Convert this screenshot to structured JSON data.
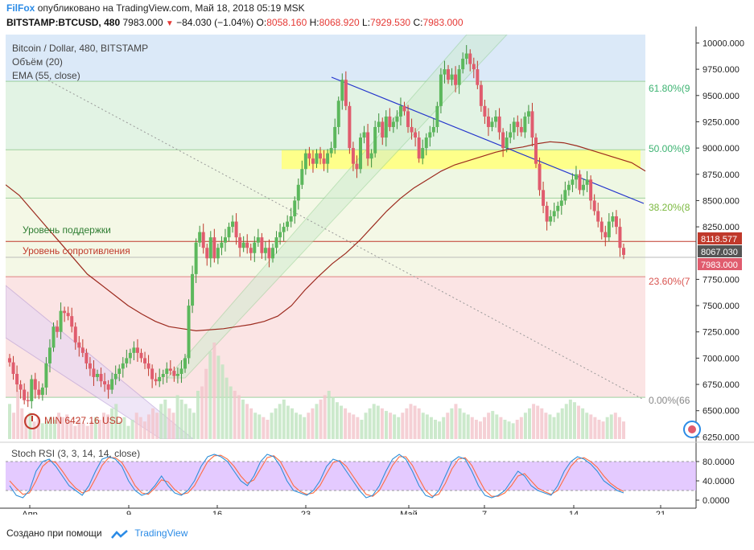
{
  "header": {
    "brand": "FilFox",
    "published_text": "опубликовано на TradingView.com, Май 18, 2018 05:19 MSK"
  },
  "ohlc": {
    "symbol": "BITSTAMP:BTCUSD, 480",
    "last": "7983.000",
    "change": "−84.030 (−1.04%)",
    "o_label": "O:",
    "o_val": "8058.160",
    "h_label": "H:",
    "h_val": "8068.920",
    "l_label": "L:",
    "l_val": "7929.530",
    "c_label": "C:",
    "c_val": "7983.000"
  },
  "legend": {
    "title": "Bitcoin / Dollar, 480, BITSTAMP",
    "volume": "Объём (20)",
    "ema": "EMA (55, close)"
  },
  "annotations": {
    "support": "Уровень поддержки",
    "resistance": "Уровень сопротивления",
    "min_label": "MIN 6427.16 USD"
  },
  "fib_labels": [
    "61.80%(9",
    "50.00%(9",
    "38.20%(8",
    "23.60%(7",
    "0.00%(66"
  ],
  "price_badges": {
    "resistance": "8118.577",
    "support": "8067.030",
    "last": "7983.000"
  },
  "stoch_label": "Stoch RSI (3, 3, 14, 14, close)",
  "footer": {
    "created": "Создано при помощи",
    "brand": "TradingView"
  },
  "colors": {
    "up": "#5cb85c",
    "down": "#e05c6e",
    "ema": "#9c2a1e",
    "trend_blue": "#2233cc",
    "fib_green": "#3cb371",
    "stoch_k": "#2f8fd8",
    "stoch_d": "#ff6b40",
    "band": "#d9b3ff"
  },
  "chart_data": {
    "type": "candlestick",
    "title": "Bitcoin / Dollar, 480, BITSTAMP",
    "y_ticks": [
      "10000.000",
      "9750.000",
      "9500.000",
      "9250.000",
      "9000.000",
      "8750.000",
      "8500.000",
      "8250.000",
      "7750.000",
      "7500.000",
      "7250.000",
      "7000.000",
      "6750.000",
      "6500.000",
      "6250.000"
    ],
    "x_ticks": [
      "Апр",
      "9",
      "16",
      "23",
      "Май",
      "7",
      "14",
      "21"
    ],
    "ylim": [
      6230,
      10080
    ],
    "fib_levels": [
      9635,
      8984,
      8523,
      7775,
      6627
    ],
    "horizontal_levels": {
      "resistance": 8118.577,
      "support": 8067.03
    },
    "closes": [
      6960,
      6850,
      6750,
      6700,
      6600,
      6590,
      6800,
      6700,
      6650,
      6720,
      6950,
      7100,
      7300,
      7250,
      7450,
      7430,
      7400,
      7300,
      7150,
      7100,
      7050,
      6950,
      6900,
      6820,
      6850,
      6780,
      6750,
      6700,
      6800,
      6850,
      6900,
      6950,
      7000,
      7050,
      7100,
      7050,
      7000,
      6950,
      6900,
      6800,
      6780,
      6820,
      6850,
      6900,
      6880,
      6830,
      6850,
      6900,
      7000,
      7500,
      7800,
      8100,
      8200,
      8050,
      7950,
      8150,
      7950,
      8050,
      8100,
      8150,
      8250,
      8300,
      8150,
      8050,
      8100,
      8050,
      8000,
      8100,
      8150,
      8000,
      8050,
      7950,
      8050,
      8150,
      8200,
      8250,
      8300,
      8350,
      8500,
      8650,
      8800,
      8950,
      8900,
      8850,
      8950,
      8900,
      8850,
      8950,
      9000,
      9200,
      9450,
      9650,
      9400,
      9000,
      8850,
      8800,
      9100,
      9150,
      8900,
      8950,
      9200,
      9250,
      9100,
      9300,
      9200,
      9250,
      9300,
      9400,
      9350,
      9200,
      9150,
      9100,
      8900,
      9000,
      9100,
      9150,
      9200,
      9400,
      9700,
      9750,
      9650,
      9700,
      9600,
      9750,
      9850,
      9900,
      9800,
      9750,
      9600,
      9400,
      9300,
      9200,
      9250,
      9300,
      9150,
      9000,
      9100,
      9150,
      9250,
      9200,
      9150,
      9300,
      9350,
      9100,
      8850,
      8600,
      8450,
      8300,
      8350,
      8400,
      8450,
      8500,
      8600,
      8650,
      8700,
      8750,
      8600,
      8650,
      8700,
      8500,
      8400,
      8300,
      8200,
      8150,
      8300,
      8350,
      8250,
      8050,
      7983
    ],
    "ema55": [
      8650,
      8550,
      8400,
      8250,
      8100,
      7950,
      7800,
      7700,
      7600,
      7500,
      7420,
      7350,
      7300,
      7280,
      7260,
      7270,
      7280,
      7300,
      7320,
      7350,
      7400,
      7500,
      7650,
      7780,
      7900,
      8000,
      8120,
      8260,
      8400,
      8520,
      8620,
      8700,
      8780,
      8840,
      8880,
      8920,
      8960,
      8990,
      9010,
      9040,
      9060,
      9050,
      9020,
      8980,
      8940,
      8900,
      8860,
      8780
    ],
    "volume": [
      40,
      30,
      55,
      35,
      25,
      30,
      20,
      25,
      18,
      20,
      25,
      22,
      30,
      25,
      28,
      20,
      15,
      22,
      18,
      15,
      20,
      25,
      22,
      30,
      28,
      35,
      40,
      20,
      25,
      15,
      22,
      30,
      25,
      20,
      28,
      35,
      30,
      40,
      45,
      35,
      30,
      50,
      45,
      40,
      35,
      30,
      55,
      60,
      80,
      100,
      110,
      95,
      85,
      70,
      60,
      55,
      50,
      45,
      40,
      35,
      30,
      28,
      25,
      22,
      30,
      35,
      40,
      45,
      38,
      35,
      30,
      28,
      25,
      30,
      35,
      40,
      45,
      50,
      55,
      48,
      42,
      38,
      35,
      30,
      28,
      25,
      22,
      30,
      35,
      40,
      38,
      35,
      32,
      30,
      28,
      25,
      30,
      35,
      40,
      38,
      35,
      30,
      28,
      25,
      22,
      20,
      25,
      30,
      35,
      40,
      35,
      30,
      28,
      25,
      22,
      20,
      25,
      30,
      32,
      28,
      25,
      22,
      20,
      18,
      22,
      25,
      30,
      35,
      40,
      38,
      35,
      30,
      28,
      25,
      30,
      35,
      40,
      45,
      42,
      38,
      35,
      30,
      28,
      25,
      22,
      20,
      25,
      28,
      30,
      25,
      20
    ],
    "stoch_k": [
      30,
      10,
      5,
      20,
      60,
      80,
      85,
      70,
      50,
      30,
      20,
      10,
      30,
      60,
      85,
      90,
      85,
      70,
      40,
      20,
      10,
      15,
      30,
      50,
      30,
      15,
      10,
      20,
      40,
      70,
      90,
      95,
      90,
      80,
      60,
      40,
      30,
      50,
      80,
      95,
      90,
      70,
      40,
      20,
      15,
      10,
      20,
      40,
      70,
      85,
      80,
      60,
      40,
      20,
      5,
      10,
      30,
      60,
      85,
      95,
      85,
      60,
      30,
      10,
      5,
      20,
      50,
      80,
      90,
      85,
      60,
      30,
      10,
      5,
      10,
      20,
      40,
      60,
      50,
      30,
      20,
      15,
      10,
      30,
      60,
      80,
      90,
      85,
      75,
      60,
      40,
      30,
      20,
      15
    ],
    "stoch_d": [
      40,
      25,
      12,
      15,
      40,
      70,
      82,
      78,
      60,
      40,
      25,
      15,
      20,
      45,
      72,
      88,
      88,
      78,
      55,
      30,
      15,
      12,
      25,
      42,
      38,
      22,
      12,
      15,
      30,
      55,
      80,
      92,
      93,
      85,
      70,
      50,
      35,
      42,
      65,
      88,
      92,
      80,
      55,
      30,
      18,
      12,
      15,
      30,
      55,
      78,
      82,
      70,
      50,
      30,
      12,
      8,
      20,
      45,
      72,
      90,
      90,
      72,
      45,
      20,
      8,
      12,
      35,
      65,
      85,
      88,
      72,
      45,
      20,
      8,
      8,
      15,
      30,
      50,
      55,
      40,
      25,
      18,
      12,
      20,
      45,
      70,
      85,
      88,
      80,
      68,
      50,
      35,
      25,
      18
    ]
  }
}
